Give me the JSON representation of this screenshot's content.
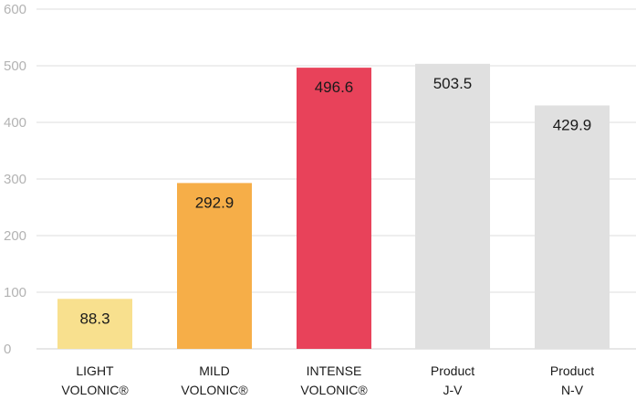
{
  "chart_data": {
    "type": "bar",
    "categories": [
      [
        "LIGHT",
        "VOLONIC®"
      ],
      [
        "MILD",
        "VOLONIC®"
      ],
      [
        "INTENSE",
        "VOLONIC®"
      ],
      [
        "Product",
        "J-V"
      ],
      [
        "Product",
        "N-V"
      ]
    ],
    "values": [
      88.3,
      292.9,
      496.6,
      503.5,
      429.9
    ],
    "value_labels": [
      "88.3",
      "292.9",
      "496.6",
      "503.5",
      "429.9"
    ],
    "colors": [
      "#f8e08e",
      "#f6ae48",
      "#e8425a",
      "#e0e0e0",
      "#e0e0e0"
    ],
    "yticks": [
      "0",
      "100",
      "200",
      "300",
      "400",
      "500",
      "600"
    ],
    "ylim": [
      0,
      600
    ],
    "grid": true,
    "title": "",
    "xlabel": "",
    "ylabel": ""
  }
}
